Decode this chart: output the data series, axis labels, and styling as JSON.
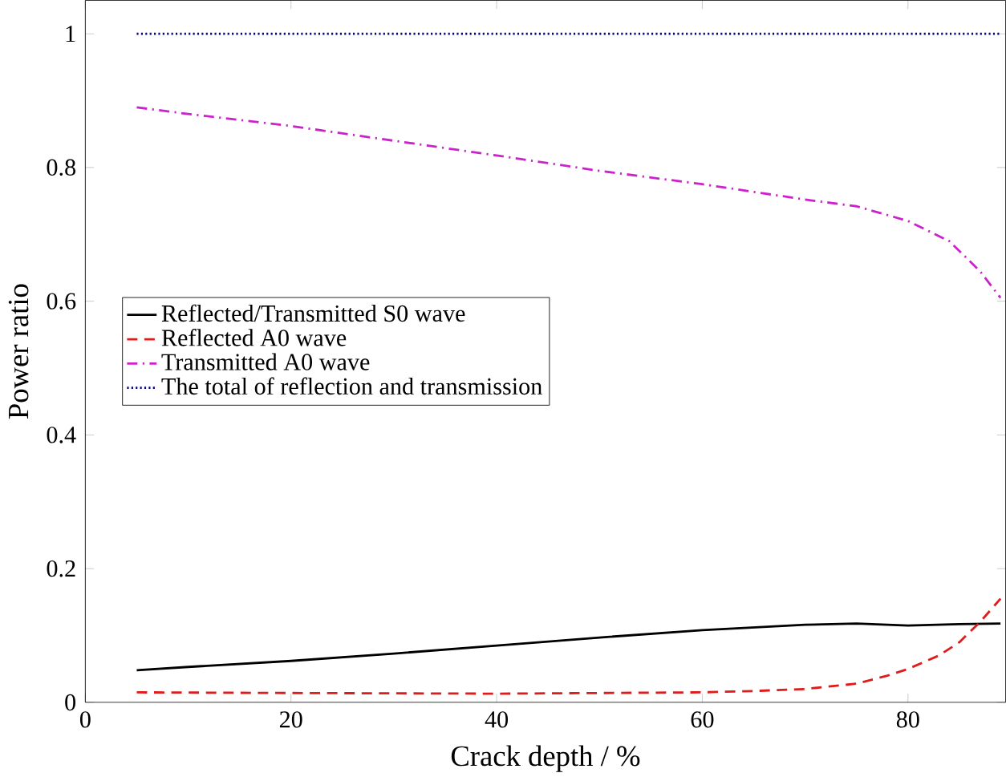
{
  "chart_data": {
    "type": "line",
    "xlabel": "Crack depth / %",
    "ylabel": "Power ratio",
    "xlim": [
      0,
      89.5
    ],
    "ylim": [
      0,
      1.05
    ],
    "xticks": [
      0,
      20,
      40,
      60,
      80
    ],
    "yticks": [
      0,
      0.2,
      0.4,
      0.6,
      0.8,
      1
    ],
    "legend": "left",
    "grid": false,
    "marker": "none",
    "series": [
      {
        "name": "Reflected/Transmitted S0 wave",
        "color": "#000000",
        "line_style": "solid",
        "x": [
          5,
          10,
          20,
          30,
          40,
          50,
          60,
          70,
          75,
          80,
          85,
          89
        ],
        "values": [
          0.048,
          0.053,
          0.062,
          0.073,
          0.085,
          0.097,
          0.108,
          0.116,
          0.118,
          0.115,
          0.117,
          0.118
        ]
      },
      {
        "name": "Reflected A0 wave",
        "color": "#dd1c1c",
        "line_style": "dashed",
        "x": [
          5,
          20,
          40,
          60,
          65,
          70,
          75,
          78,
          80,
          83,
          85,
          87,
          89
        ],
        "values": [
          0.015,
          0.014,
          0.013,
          0.015,
          0.017,
          0.02,
          0.028,
          0.04,
          0.05,
          0.07,
          0.09,
          0.12,
          0.155
        ]
      },
      {
        "name": "Transmitted A0 wave",
        "color": "#cc22cc",
        "line_style": "dashdot",
        "x": [
          5,
          10,
          20,
          30,
          40,
          50,
          60,
          70,
          75,
          80,
          84,
          87,
          89
        ],
        "values": [
          0.89,
          0.88,
          0.862,
          0.84,
          0.818,
          0.795,
          0.775,
          0.752,
          0.742,
          0.72,
          0.69,
          0.645,
          0.605
        ]
      },
      {
        "name": "The total of reflection and transmission",
        "color": "#000080",
        "line_style": "dotted",
        "x": [
          5,
          89
        ],
        "values": [
          1,
          1
        ]
      }
    ]
  }
}
